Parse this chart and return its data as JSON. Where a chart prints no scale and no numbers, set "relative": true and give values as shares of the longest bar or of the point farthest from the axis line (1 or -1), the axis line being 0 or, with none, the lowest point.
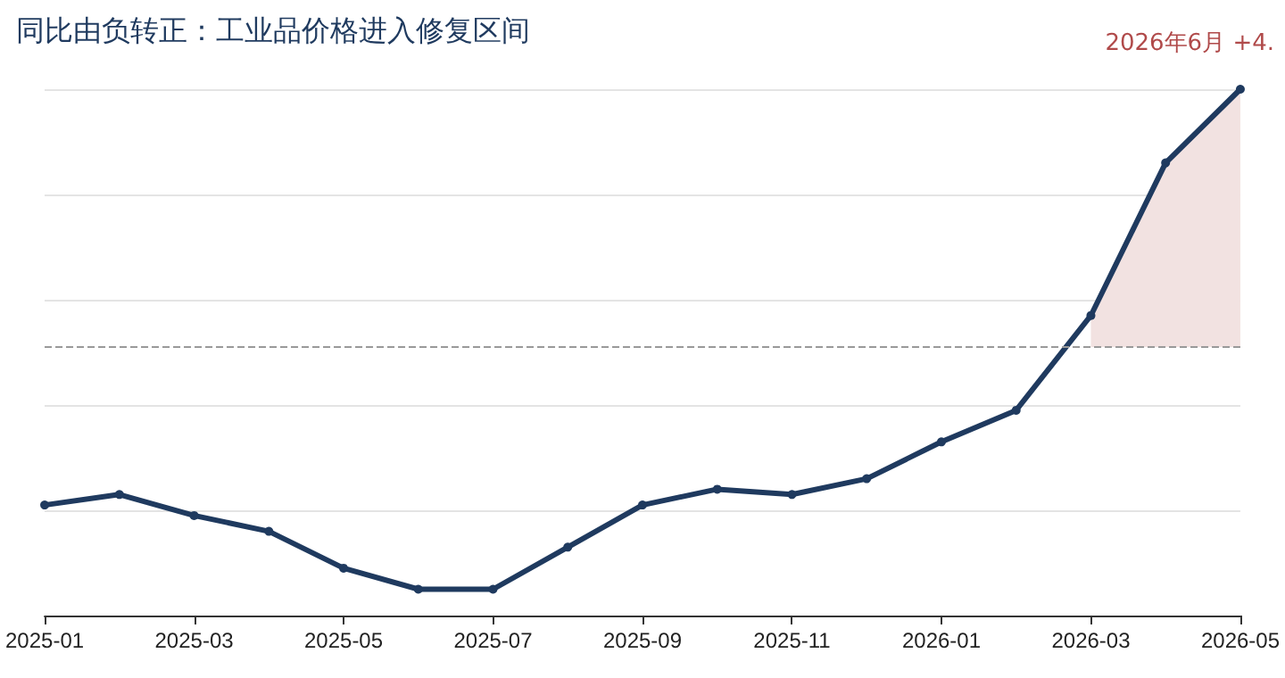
{
  "chart_data": {
    "type": "line",
    "title": "同比由负转正：工业品价格进入修复区间",
    "relative": true,
    "annotations": [
      "2026年6月 +4."
    ],
    "categories": [
      "2025-01",
      null,
      "2025-03",
      null,
      "2025-05",
      null,
      "2025-07",
      null,
      "2025-09",
      null,
      "2025-11",
      null,
      "2026-01",
      null,
      "2026-03",
      null,
      "2026-05"
    ],
    "series": [
      {
        "color": "#1f3a5f",
        "marker": "circle",
        "values": [
          0.21,
          0.23,
          0.19,
          0.16,
          0.09,
          0.05,
          0.05,
          0.13,
          0.21,
          0.24,
          0.23,
          0.26,
          0.33,
          0.39,
          0.57,
          0.86,
          1
        ]
      },
      {
        "type": "area",
        "marker": "none",
        "color": "#f2e2e1",
        "values": [
          null,
          null,
          null,
          null,
          null,
          null,
          null,
          null,
          null,
          null,
          null,
          null,
          null,
          null,
          0.57,
          0.86,
          1
        ]
      }
    ],
    "ref_lines": [
      {
        "axis": "y",
        "value": 0.51,
        "color": "#999999",
        "line_style": "dashed"
      }
    ],
    "grid": "y",
    "line_style": "solid"
  }
}
